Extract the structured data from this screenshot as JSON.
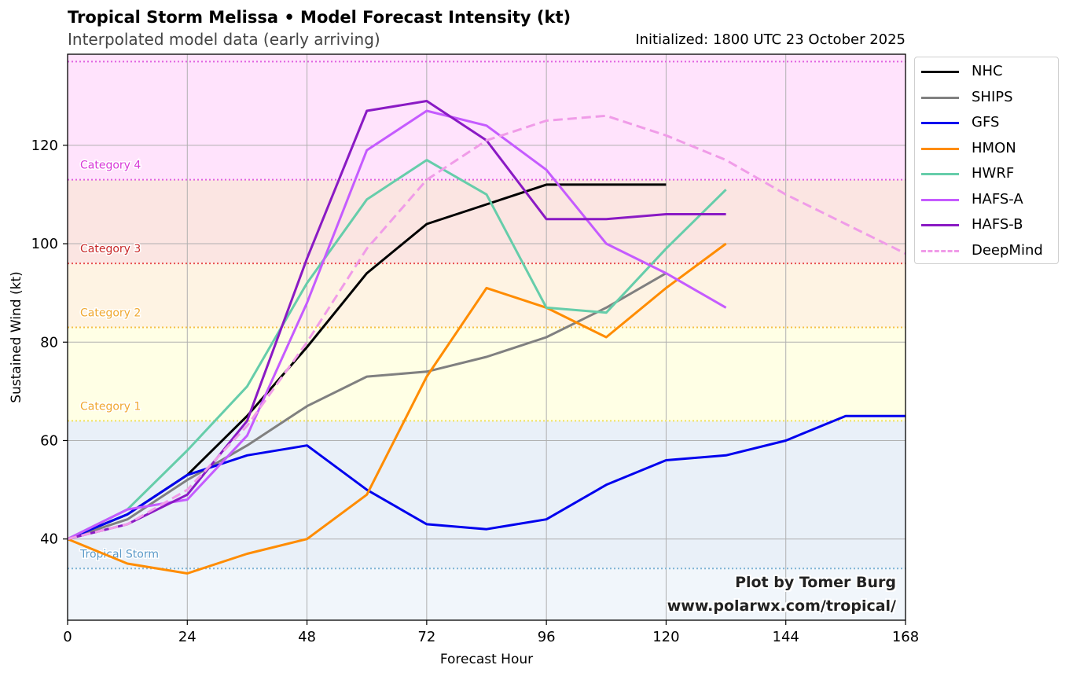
{
  "title": "Tropical Storm Melissa • Model Forecast Intensity (kt)",
  "subtitle": "Interpolated model data (early arriving)",
  "initialized": "Initialized: 1800 UTC 23 October 2025",
  "credit_line1": "Plot by Tomer Burg",
  "credit_line2": "www.polarwx.com/tropical/",
  "chart_data": {
    "type": "line",
    "title": "Tropical Storm Melissa • Model Forecast Intensity (kt)",
    "xlabel": "Forecast Hour",
    "ylabel": "Sustained Wind (kt)",
    "xlim": [
      0,
      168
    ],
    "ylim": [
      23.5,
      138.5
    ],
    "xticks": [
      0,
      24,
      48,
      72,
      96,
      120,
      144,
      168
    ],
    "yticks": [
      40,
      60,
      80,
      100,
      120
    ],
    "grid": true,
    "legend_position": "outside-right-top",
    "categories": [
      {
        "label": "Tropical Storm",
        "threshold": 34,
        "upper": 64,
        "fill": "#e9f0f8",
        "line": "#7fb3d5",
        "text_color": "#5a99c8"
      },
      {
        "label": "Category 1",
        "threshold": 64,
        "upper": 83,
        "fill": "#ffffe5",
        "line": "#f0e060",
        "text_color": "#f0a830"
      },
      {
        "label": "Category 2",
        "threshold": 83,
        "upper": 96,
        "fill": "#fef3e3",
        "line": "#f5c04a",
        "text_color": "#f0a830"
      },
      {
        "label": "Category 3",
        "threshold": 96,
        "upper": 113,
        "fill": "#fbe5e2",
        "line": "#e85050",
        "text_color": "#c82828"
      },
      {
        "label": "Category 4",
        "threshold": 113,
        "upper": 137,
        "fill": "#ffe3fc",
        "line": "#e060e0",
        "text_color": "#d838d8"
      }
    ],
    "below_ts_fill": "#f1f6fb",
    "top_line": {
      "value": 137,
      "color": "#e060e0"
    },
    "series": [
      {
        "name": "NHC",
        "color": "#000000",
        "dashed": false,
        "x": [
          0,
          12,
          24,
          36,
          48,
          60,
          72,
          84,
          96,
          108,
          120
        ],
        "y": [
          40,
          45,
          53,
          65,
          79,
          94,
          104,
          108,
          112,
          112,
          112
        ]
      },
      {
        "name": "SHIPS",
        "color": "#808080",
        "dashed": false,
        "x": [
          0,
          12,
          24,
          36,
          48,
          60,
          72,
          84,
          96,
          108,
          120
        ],
        "y": [
          40,
          44,
          52,
          59,
          67,
          73,
          74,
          77,
          81,
          87,
          94
        ]
      },
      {
        "name": "GFS",
        "color": "#0000ee",
        "dashed": false,
        "x": [
          0,
          12,
          24,
          36,
          48,
          60,
          72,
          84,
          96,
          108,
          120,
          132,
          144,
          156,
          168
        ],
        "y": [
          40,
          45,
          53,
          57,
          59,
          50,
          43,
          42,
          44,
          51,
          56,
          57,
          60,
          65,
          65
        ]
      },
      {
        "name": "HMON",
        "color": "#ff8c00",
        "dashed": false,
        "x": [
          0,
          12,
          24,
          36,
          48,
          60,
          72,
          84,
          96,
          108,
          120,
          132
        ],
        "y": [
          40,
          35,
          33,
          37,
          40,
          49,
          73,
          91,
          87,
          81,
          91,
          100
        ]
      },
      {
        "name": "HWRF",
        "color": "#66cdaa",
        "dashed": false,
        "x": [
          0,
          12,
          24,
          36,
          48,
          60,
          72,
          84,
          96,
          108,
          120,
          132
        ],
        "y": [
          40,
          46,
          58,
          71,
          92,
          109,
          117,
          110,
          87,
          86,
          99,
          111
        ]
      },
      {
        "name": "HAFS-A",
        "color": "#c55bff",
        "dashed": false,
        "x": [
          0,
          12,
          24,
          36,
          48,
          60,
          72,
          84,
          96,
          108,
          120,
          132
        ],
        "y": [
          40,
          46,
          48,
          61,
          88,
          119,
          127,
          124,
          115,
          100,
          94,
          87
        ]
      },
      {
        "name": "HAFS-B",
        "color": "#8a1ac4",
        "dashed": false,
        "x": [
          0,
          12,
          24,
          36,
          48,
          60,
          72,
          84,
          96,
          108,
          120,
          132
        ],
        "y": [
          40,
          43,
          49,
          64,
          97,
          127,
          129,
          121,
          105,
          105,
          106,
          106
        ]
      },
      {
        "name": "DeepMind",
        "color": "#f09ce8",
        "dashed": true,
        "x": [
          0,
          12,
          24,
          36,
          48,
          60,
          72,
          84,
          96,
          108,
          120,
          132,
          144,
          156,
          168
        ],
        "y": [
          40,
          43,
          50,
          63,
          80,
          99,
          113,
          121,
          125,
          126,
          122,
          117,
          110,
          104,
          98
        ]
      }
    ]
  }
}
